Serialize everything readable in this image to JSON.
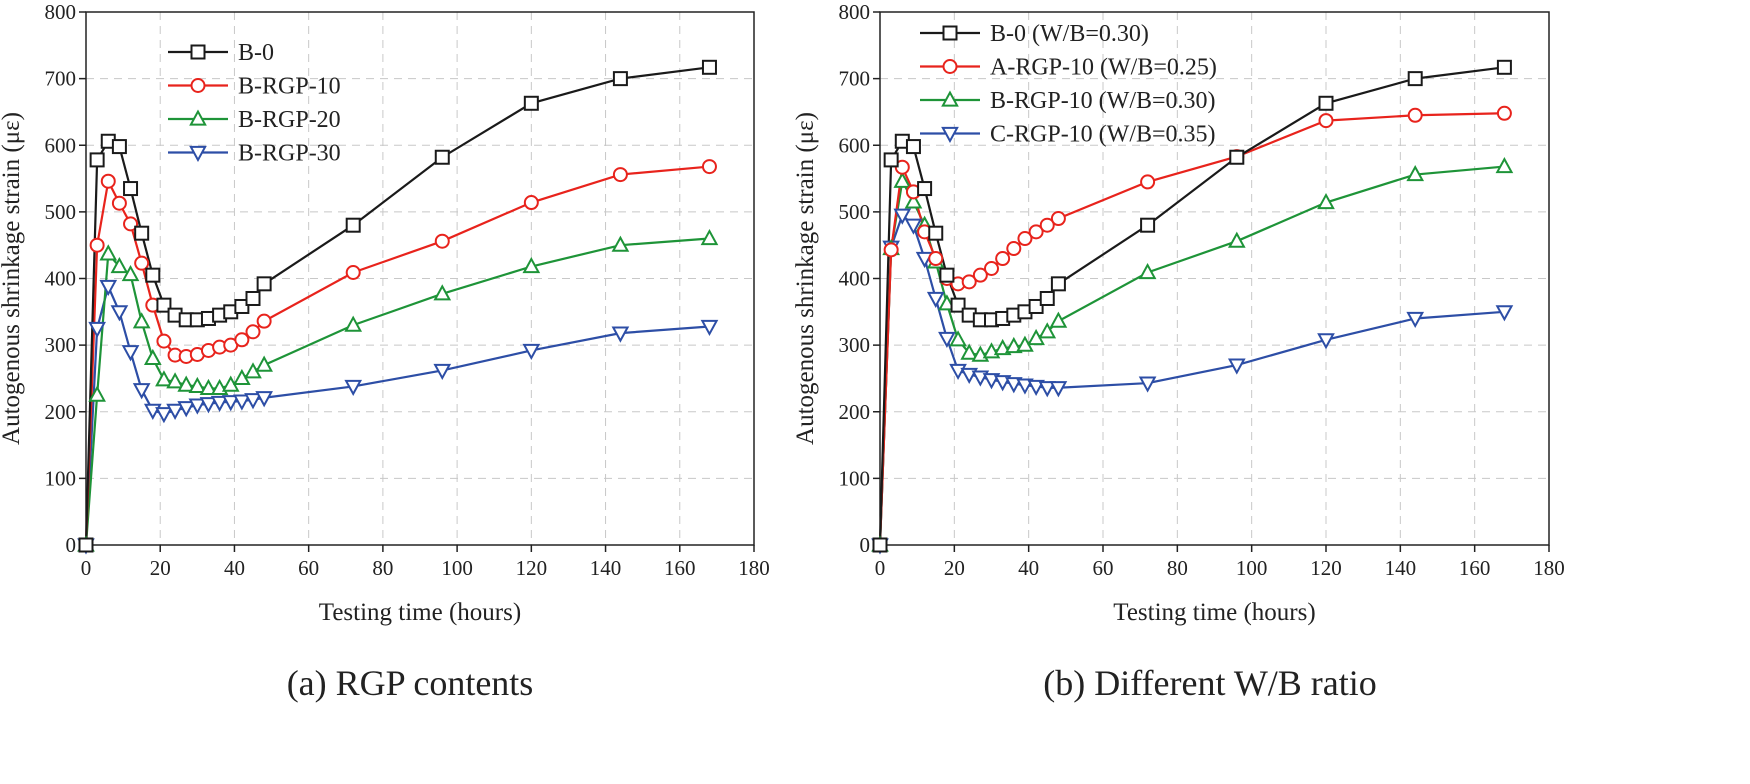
{
  "chart_data": [
    {
      "type": "line",
      "caption": "(a) RGP contents",
      "xlabel": "Testing time (hours)",
      "ylabel": "Autogenous shrinkage strain (με)",
      "xlim": [
        0,
        180
      ],
      "ylim": [
        0,
        800
      ],
      "xticks": [
        0,
        20,
        40,
        60,
        80,
        100,
        120,
        140,
        160,
        180
      ],
      "yticks": [
        0,
        100,
        200,
        300,
        400,
        500,
        600,
        700,
        800
      ],
      "grid": true,
      "legend_position": "top-left",
      "series": [
        {
          "name": "B-0",
          "color": "#1a1a1a",
          "marker": "square",
          "x": [
            0,
            3,
            6,
            9,
            12,
            15,
            18,
            21,
            24,
            27,
            30,
            33,
            36,
            39,
            42,
            45,
            48,
            72,
            96,
            120,
            144,
            168
          ],
          "y": [
            0,
            578,
            606,
            598,
            535,
            468,
            405,
            360,
            345,
            338,
            338,
            340,
            345,
            350,
            358,
            370,
            392,
            480,
            582,
            663,
            700,
            717
          ]
        },
        {
          "name": "B-RGP-10",
          "color": "#e8231c",
          "marker": "circle",
          "x": [
            0,
            3,
            6,
            9,
            12,
            15,
            18,
            21,
            24,
            27,
            30,
            33,
            36,
            39,
            42,
            45,
            48,
            72,
            96,
            120,
            144,
            168
          ],
          "y": [
            0,
            450,
            546,
            513,
            482,
            423,
            360,
            306,
            285,
            283,
            286,
            292,
            297,
            300,
            308,
            320,
            336,
            409,
            456,
            514,
            556,
            568
          ]
        },
        {
          "name": "B-RGP-20",
          "color": "#1e9438",
          "marker": "triangle-up",
          "x": [
            0,
            3,
            6,
            9,
            12,
            15,
            18,
            21,
            24,
            27,
            30,
            33,
            36,
            39,
            42,
            45,
            48,
            72,
            96,
            120,
            144,
            168
          ],
          "y": [
            0,
            225,
            437,
            418,
            406,
            335,
            280,
            248,
            245,
            240,
            238,
            235,
            235,
            240,
            250,
            260,
            270,
            330,
            377,
            418,
            450,
            460
          ]
        },
        {
          "name": "B-RGP-30",
          "color": "#2d4ea6",
          "marker": "triangle-down",
          "x": [
            0,
            3,
            6,
            9,
            12,
            15,
            18,
            21,
            24,
            27,
            30,
            33,
            36,
            39,
            42,
            45,
            48,
            72,
            96,
            120,
            144,
            168
          ],
          "y": [
            0,
            325,
            388,
            350,
            290,
            233,
            202,
            197,
            202,
            206,
            210,
            212,
            214,
            215,
            216,
            218,
            221,
            238,
            262,
            292,
            318,
            328
          ]
        }
      ]
    },
    {
      "type": "line",
      "caption": "(b) Different W/B ratio",
      "xlabel": "Testing time (hours)",
      "ylabel": "Autogenous shrinkage strain (με)",
      "xlim": [
        0,
        180
      ],
      "ylim": [
        0,
        800
      ],
      "xticks": [
        0,
        20,
        40,
        60,
        80,
        100,
        120,
        140,
        160,
        180
      ],
      "yticks": [
        0,
        100,
        200,
        300,
        400,
        500,
        600,
        700,
        800
      ],
      "grid": true,
      "legend_position": "top-left",
      "series": [
        {
          "name": "B-0 (W/B=0.30)",
          "color": "#1a1a1a",
          "marker": "square",
          "x": [
            0,
            3,
            6,
            9,
            12,
            15,
            18,
            21,
            24,
            27,
            30,
            33,
            36,
            39,
            42,
            45,
            48,
            72,
            96,
            120,
            144,
            168
          ],
          "y": [
            0,
            578,
            606,
            598,
            535,
            468,
            405,
            360,
            345,
            338,
            338,
            340,
            345,
            350,
            358,
            370,
            392,
            480,
            582,
            663,
            700,
            717
          ]
        },
        {
          "name": "A-RGP-10 (W/B=0.25)",
          "color": "#e8231c",
          "marker": "circle",
          "x": [
            0,
            3,
            6,
            9,
            12,
            15,
            18,
            21,
            24,
            27,
            30,
            33,
            36,
            39,
            42,
            45,
            48,
            72,
            96,
            120,
            144,
            168
          ],
          "y": [
            0,
            443,
            567,
            530,
            470,
            430,
            400,
            392,
            395,
            405,
            415,
            430,
            445,
            460,
            470,
            480,
            490,
            545,
            583,
            637,
            645,
            648
          ]
        },
        {
          "name": "B-RGP-10 (W/B=0.30)",
          "color": "#1e9438",
          "marker": "triangle-up",
          "x": [
            0,
            3,
            6,
            9,
            12,
            15,
            18,
            21,
            24,
            27,
            30,
            33,
            36,
            39,
            42,
            45,
            48,
            72,
            96,
            120,
            144,
            168
          ],
          "y": [
            0,
            445,
            546,
            515,
            480,
            425,
            362,
            308,
            288,
            285,
            290,
            295,
            298,
            300,
            310,
            320,
            336,
            409,
            456,
            514,
            556,
            568
          ]
        },
        {
          "name": "C-RGP-10 (W/B=0.35)",
          "color": "#2d4ea6",
          "marker": "triangle-down",
          "x": [
            0,
            3,
            6,
            9,
            12,
            15,
            18,
            21,
            24,
            27,
            30,
            33,
            36,
            39,
            42,
            45,
            48,
            72,
            96,
            120,
            144,
            168
          ],
          "y": [
            0,
            447,
            495,
            480,
            430,
            370,
            310,
            262,
            256,
            252,
            248,
            245,
            242,
            240,
            238,
            236,
            236,
            243,
            270,
            308,
            340,
            350
          ]
        }
      ]
    }
  ]
}
